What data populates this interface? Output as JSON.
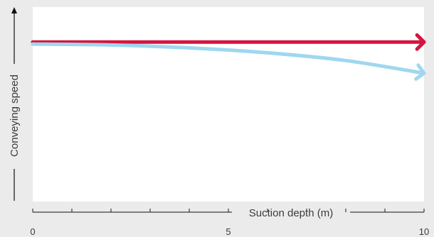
{
  "chart_data": {
    "type": "line",
    "ylabel": "Conveying speed",
    "xlabel": "Suction depth (m)",
    "xlim": [
      0,
      10
    ],
    "ylim": [
      0,
      1
    ],
    "x_ticks": [
      0,
      1,
      2,
      3,
      4,
      5,
      6,
      7,
      8,
      9,
      10
    ],
    "x_tick_labels": [
      {
        "value": 0,
        "label": "0"
      },
      {
        "value": 5,
        "label": "5"
      },
      {
        "value": 10,
        "label": "10"
      }
    ],
    "grid": false,
    "series": [
      {
        "color": "#d5153f",
        "x": [
          0,
          10
        ],
        "y": [
          0.82,
          0.82
        ]
      },
      {
        "color": "#9fd7ef",
        "x": [
          0,
          2,
          4,
          6,
          8,
          10
        ],
        "y": [
          0.81,
          0.805,
          0.79,
          0.765,
          0.725,
          0.66
        ]
      }
    ],
    "colors": {
      "background": "#ebebeb",
      "plot_area": "#ffffff",
      "axis": "#3c3c3c"
    }
  }
}
